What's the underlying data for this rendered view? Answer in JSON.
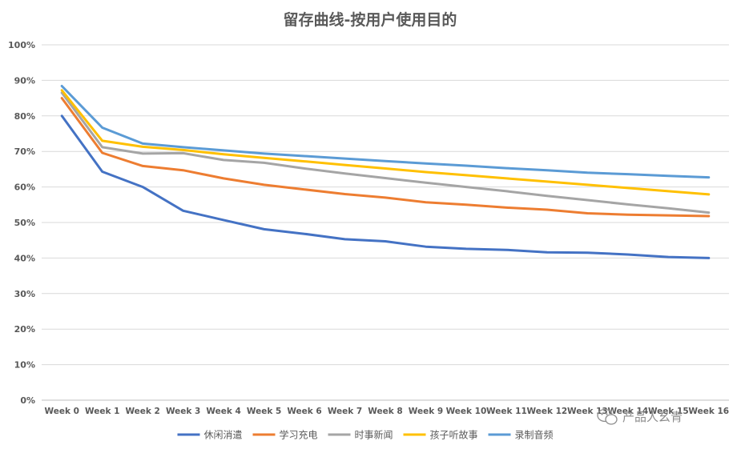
{
  "chart_data": {
    "type": "line",
    "title": "留存曲线-按用户使用目的",
    "xlabel": "",
    "ylabel": "",
    "ylim": [
      0,
      100
    ],
    "yticks": [
      "0%",
      "10%",
      "20%",
      "30%",
      "40%",
      "50%",
      "60%",
      "70%",
      "80%",
      "90%",
      "100%"
    ],
    "categories": [
      "Week 0",
      "Week 1",
      "Week 2",
      "Week 3",
      "Week 4",
      "Week 5",
      "Week 6",
      "Week 7",
      "Week 8",
      "Week 9",
      "Week 10",
      "Week 11",
      "Week 12",
      "Week 13",
      "Week 14",
      "Week 15",
      "Week 16"
    ],
    "grid": true,
    "legend_position": "bottom",
    "series": [
      {
        "name": "休闲消遣",
        "color": "#4472c4",
        "values": [
          80.0,
          64.3,
          60.0,
          53.3,
          50.7,
          48.1,
          46.8,
          45.3,
          44.7,
          43.2,
          42.6,
          42.3,
          41.6,
          41.5,
          41.0,
          40.3,
          40.0
        ]
      },
      {
        "name": "学习充电",
        "color": "#ed7d31",
        "values": [
          85.0,
          69.6,
          65.9,
          64.7,
          62.4,
          60.6,
          59.3,
          58.0,
          57.0,
          55.7,
          55.0,
          54.2,
          53.6,
          52.6,
          52.2,
          52.0,
          51.8
        ]
      },
      {
        "name": "时事新闻",
        "color": "#a5a5a5",
        "values": [
          86.5,
          71.2,
          69.4,
          69.5,
          67.6,
          66.8,
          65.2,
          63.8,
          62.5,
          61.2,
          60.0,
          58.8,
          57.5,
          56.3,
          55.1,
          54.0,
          52.8
        ]
      },
      {
        "name": "孩子听故事",
        "color": "#ffc000",
        "values": [
          87.2,
          73.0,
          71.3,
          70.4,
          69.2,
          68.2,
          67.2,
          66.2,
          65.2,
          64.2,
          63.3,
          62.4,
          61.5,
          60.6,
          59.7,
          58.8,
          57.9
        ]
      },
      {
        "name": "录制音频",
        "color": "#5b9bd5",
        "values": [
          88.4,
          76.7,
          72.2,
          71.2,
          70.3,
          69.4,
          68.7,
          68.0,
          67.3,
          66.6,
          66.0,
          65.3,
          64.7,
          64.0,
          63.6,
          63.1,
          62.7
        ]
      }
    ]
  },
  "watermark": {
    "icon": "wechat-icon",
    "text": "产品人幺青"
  }
}
